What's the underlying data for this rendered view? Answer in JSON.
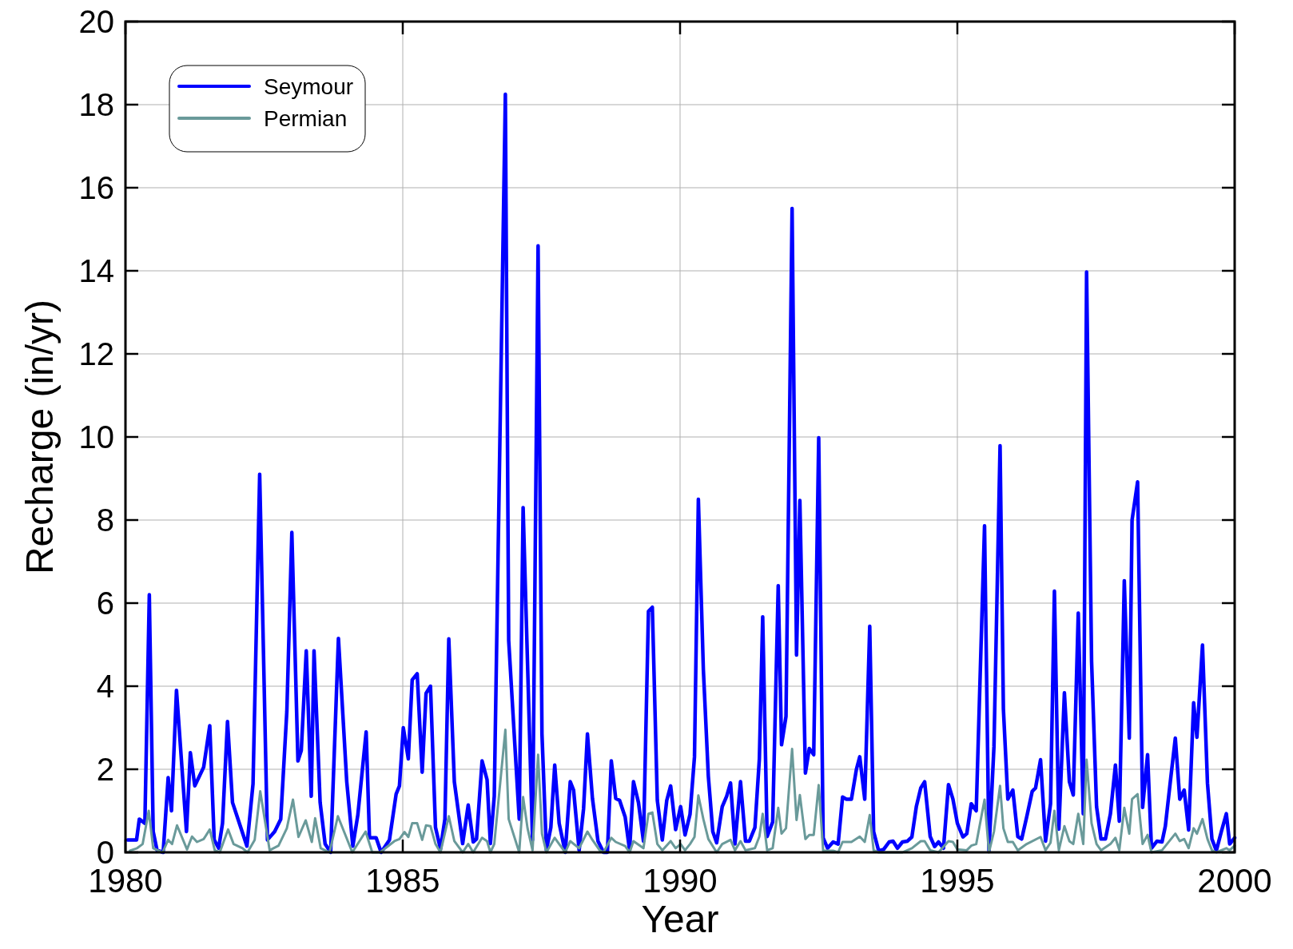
{
  "chart_data": {
    "type": "line",
    "xlabel": "Year",
    "ylabel": "Recharge (in/yr)",
    "xlim": [
      1980,
      2000
    ],
    "xticks": [
      1980,
      1985,
      1990,
      1995,
      2000
    ],
    "ylim": [
      0,
      20
    ],
    "yticks": [
      0,
      2,
      4,
      6,
      8,
      10,
      12,
      14,
      16,
      18,
      20
    ],
    "grid": true,
    "legend": "top left",
    "marker": "none",
    "line_style": "solid",
    "series": [
      {
        "name": "Seymour",
        "color": "#0000ff",
        "x": [
          1980.04,
          1980.2,
          1980.25,
          1980.35,
          1980.43,
          1980.5,
          1980.57,
          1980.68,
          1980.77,
          1980.83,
          1980.92,
          1981.1,
          1981.17,
          1981.25,
          1981.41,
          1981.52,
          1981.6,
          1981.68,
          1981.75,
          1981.84,
          1981.93,
          1982.19,
          1982.3,
          1982.42,
          1982.56,
          1982.69,
          1982.8,
          1982.91,
          1983.0,
          1983.11,
          1983.17,
          1983.26,
          1983.35,
          1983.4,
          1983.51,
          1983.6,
          1983.7,
          1983.84,
          1983.99,
          1984.1,
          1984.19,
          1984.34,
          1984.4,
          1984.52,
          1984.61,
          1984.76,
          1984.88,
          1984.94,
          1985.01,
          1985.1,
          1985.17,
          1985.26,
          1985.35,
          1985.42,
          1985.5,
          1985.59,
          1985.68,
          1985.76,
          1985.83,
          1985.93,
          1986.08,
          1986.18,
          1986.27,
          1986.33,
          1986.43,
          1986.52,
          1986.58,
          1986.65,
          1986.85,
          1986.91,
          1987.1,
          1987.17,
          1987.34,
          1987.44,
          1987.51,
          1987.59,
          1987.67,
          1987.74,
          1987.82,
          1987.93,
          1988.02,
          1988.08,
          1988.18,
          1988.26,
          1988.33,
          1988.42,
          1988.52,
          1988.62,
          1988.69,
          1988.76,
          1988.84,
          1988.91,
          1989.01,
          1989.09,
          1989.16,
          1989.25,
          1989.34,
          1989.43,
          1989.5,
          1989.59,
          1989.68,
          1989.76,
          1989.83,
          1989.92,
          1990.01,
          1990.09,
          1990.18,
          1990.26,
          1990.33,
          1990.42,
          1990.51,
          1990.59,
          1990.66,
          1990.76,
          1990.84,
          1990.91,
          1990.99,
          1991.09,
          1991.18,
          1991.25,
          1991.35,
          1991.43,
          1991.49,
          1991.57,
          1991.67,
          1991.77,
          1991.83,
          1991.91,
          1992.02,
          1992.1,
          1992.16,
          1992.26,
          1992.33,
          1992.41,
          1992.5,
          1992.58,
          1992.66,
          1992.76,
          1992.85,
          1992.93,
          1993.0,
          1993.09,
          1993.18,
          1993.24,
          1993.33,
          1993.42,
          1993.49,
          1993.58,
          1993.67,
          1993.77,
          1993.84,
          1993.92,
          1994.01,
          1994.1,
          1994.18,
          1994.26,
          1994.34,
          1994.41,
          1994.51,
          1994.59,
          1994.66,
          1994.75,
          1994.84,
          1994.92,
          1995.0,
          1995.1,
          1995.17,
          1995.25,
          1995.34,
          1995.49,
          1995.57,
          1995.66,
          1995.77,
          1995.83,
          1995.91,
          1996.0,
          1996.09,
          1996.16,
          1996.25,
          1996.35,
          1996.41,
          1996.5,
          1996.59,
          1996.68,
          1996.75,
          1996.83,
          1996.93,
          1997.02,
          1997.09,
          1997.18,
          1997.27,
          1997.33,
          1997.42,
          1997.51,
          1997.59,
          1997.67,
          1997.76,
          1997.85,
          1997.92,
          1998.01,
          1998.1,
          1998.15,
          1998.25,
          1998.34,
          1998.43,
          1998.5,
          1998.6,
          1998.69,
          1998.75,
          1998.84,
          1998.93,
          1999.01,
          1999.09,
          1999.17,
          1999.26,
          1999.32,
          1999.42,
          1999.51,
          1999.59,
          1999.67,
          1999.76,
          1999.85,
          1999.91,
          2000.0
        ],
        "values": [
          0.3,
          0.3,
          0.8,
          0.7,
          6.2,
          0.5,
          0.05,
          0,
          1.8,
          1.0,
          3.9,
          0.5,
          2.4,
          1.6,
          2.05,
          3.05,
          0.3,
          0.1,
          0.7,
          3.15,
          1.2,
          0.15,
          1.65,
          9.1,
          0.3,
          0.5,
          0.8,
          3.4,
          7.7,
          2.2,
          2.45,
          4.85,
          1.35,
          4.85,
          1.2,
          0.2,
          0,
          5.15,
          1.7,
          0.15,
          0.9,
          2.9,
          0.35,
          0.35,
          0,
          0.3,
          1.4,
          1.6,
          3.0,
          2.25,
          4.15,
          4.3,
          1.93,
          3.83,
          4.0,
          0.6,
          0.08,
          0.8,
          5.14,
          1.7,
          0.21,
          1.14,
          0.25,
          0.32,
          2.2,
          1.75,
          0.21,
          1.35,
          18.25,
          5.1,
          0.8,
          8.3,
          0.3,
          14.6,
          2.85,
          0.05,
          0.6,
          2.1,
          0.7,
          0,
          1.7,
          1.5,
          0.05,
          1.05,
          2.85,
          1.3,
          0.27,
          0,
          0,
          2.2,
          1.3,
          1.25,
          0.85,
          0.05,
          1.7,
          1.2,
          0.27,
          5.8,
          5.9,
          1.25,
          0.3,
          1.25,
          1.6,
          0.55,
          1.1,
          0.42,
          0.92,
          2.3,
          8.5,
          4.4,
          1.83,
          0.5,
          0.23,
          1.1,
          1.35,
          1.67,
          0.2,
          1.7,
          0.27,
          0.27,
          0.6,
          2.25,
          5.67,
          0.38,
          0.73,
          6.42,
          2.59,
          3.27,
          15.5,
          4.75,
          8.47,
          1.91,
          2.5,
          2.35,
          9.98,
          0.35,
          0.1,
          0.25,
          0.2,
          1.33,
          1.28,
          1.28,
          2.0,
          2.3,
          1.28,
          5.44,
          0.5,
          0.04,
          0.07,
          0.25,
          0.27,
          0.1,
          0.25,
          0.27,
          0.37,
          1.1,
          1.55,
          1.7,
          0.38,
          0.14,
          0.25,
          0.1,
          1.63,
          1.28,
          0.7,
          0.37,
          0.45,
          1.17,
          1.0,
          7.86,
          0.04,
          2.55,
          9.79,
          3.45,
          1.28,
          1.5,
          0.38,
          0.32,
          0.85,
          1.47,
          1.55,
          2.23,
          0.27,
          1.17,
          6.29,
          0.56,
          3.84,
          1.7,
          1.38,
          5.76,
          0.93,
          13.97,
          4.6,
          1.1,
          0.32,
          0.32,
          0.93,
          2.1,
          0.75,
          6.54,
          2.75,
          8.0,
          8.92,
          1.08,
          2.35,
          0.1,
          0.27,
          0.25,
          0.63,
          1.7,
          2.75,
          1.28,
          1.5,
          0.54,
          3.6,
          2.77,
          4.99,
          1.66,
          0.32,
          0.04,
          0.5,
          0.93,
          0.2,
          0.35
        ]
      },
      {
        "name": "Permian",
        "color": "#6a9a9a",
        "x": [
          1980.08,
          1980.21,
          1980.31,
          1980.42,
          1980.5,
          1980.67,
          1980.77,
          1980.84,
          1980.93,
          1981.11,
          1981.2,
          1981.29,
          1981.41,
          1981.52,
          1981.61,
          1981.7,
          1981.85,
          1981.95,
          1982.11,
          1982.2,
          1982.33,
          1982.43,
          1982.6,
          1982.76,
          1982.91,
          1983.02,
          1983.12,
          1983.25,
          1983.36,
          1983.42,
          1983.52,
          1983.68,
          1983.83,
          1984.09,
          1984.33,
          1984.45,
          1984.59,
          1984.85,
          1984.94,
          1985.03,
          1985.1,
          1985.17,
          1985.26,
          1985.35,
          1985.42,
          1985.5,
          1985.59,
          1985.68,
          1985.83,
          1985.93,
          1986.08,
          1986.18,
          1986.27,
          1986.43,
          1986.52,
          1986.58,
          1986.65,
          1986.85,
          1986.91,
          1987.1,
          1987.17,
          1987.25,
          1987.34,
          1987.44,
          1987.51,
          1987.59,
          1987.74,
          1987.82,
          1987.93,
          1988.02,
          1988.18,
          1988.33,
          1988.42,
          1988.55,
          1988.62,
          1988.76,
          1988.84,
          1989.01,
          1989.09,
          1989.16,
          1989.34,
          1989.43,
          1989.5,
          1989.59,
          1989.68,
          1989.83,
          1989.92,
          1990.01,
          1990.09,
          1990.18,
          1990.26,
          1990.33,
          1990.42,
          1990.51,
          1990.66,
          1990.76,
          1990.91,
          1990.99,
          1991.09,
          1991.18,
          1991.35,
          1991.43,
          1991.49,
          1991.57,
          1991.67,
          1991.77,
          1991.83,
          1991.91,
          1992.02,
          1992.1,
          1992.16,
          1992.26,
          1992.33,
          1992.41,
          1992.5,
          1992.58,
          1992.76,
          1992.85,
          1992.93,
          1993.09,
          1993.24,
          1993.33,
          1993.42,
          1993.49,
          1993.58,
          1994.01,
          1994.18,
          1994.34,
          1994.41,
          1994.51,
          1994.66,
          1994.84,
          1994.92,
          1995.0,
          1995.17,
          1995.25,
          1995.34,
          1995.49,
          1995.57,
          1995.66,
          1995.77,
          1995.83,
          1995.91,
          1996.0,
          1996.09,
          1996.25,
          1996.5,
          1996.59,
          1996.68,
          1996.75,
          1996.83,
          1996.93,
          1997.02,
          1997.09,
          1997.18,
          1997.27,
          1997.33,
          1997.42,
          1997.51,
          1997.59,
          1997.76,
          1997.85,
          1997.92,
          1998.01,
          1998.1,
          1998.15,
          1998.25,
          1998.34,
          1998.43,
          1998.5,
          1998.69,
          1998.93,
          1999.01,
          1999.09,
          1999.17,
          1999.26,
          1999.32,
          1999.42,
          1999.51,
          1999.59,
          1999.67,
          1999.85,
          1999.91,
          2000.0
        ],
        "values": [
          0.04,
          0.1,
          0.2,
          1.0,
          0.1,
          0,
          0.3,
          0.2,
          0.65,
          0.07,
          0.38,
          0.25,
          0.32,
          0.55,
          0.05,
          0,
          0.55,
          0.2,
          0.1,
          0,
          0.3,
          1.47,
          0.05,
          0.16,
          0.58,
          1.27,
          0.37,
          0.77,
          0.25,
          0.82,
          0.1,
          0,
          0.87,
          0,
          0.5,
          0,
          0,
          0.27,
          0.32,
          0.49,
          0.37,
          0.7,
          0.7,
          0.3,
          0.65,
          0.63,
          0.2,
          0,
          0.87,
          0.27,
          0,
          0.2,
          0,
          0.35,
          0.27,
          0,
          0.2,
          2.95,
          0.8,
          0,
          1.33,
          0.58,
          0.05,
          2.35,
          0.45,
          0,
          0.35,
          0.2,
          0,
          0.27,
          0.1,
          0.5,
          0.3,
          0.05,
          0,
          0.35,
          0.25,
          0.15,
          0,
          0.27,
          0.1,
          0.93,
          0.96,
          0.2,
          0.05,
          0.27,
          0.1,
          0.2,
          0.05,
          0.2,
          0.37,
          1.37,
          0.8,
          0.32,
          0,
          0.2,
          0.3,
          0.05,
          0.27,
          0.05,
          0.1,
          0.38,
          0.93,
          0.05,
          0.1,
          1.07,
          0.45,
          0.58,
          2.49,
          0.78,
          1.38,
          0.32,
          0.42,
          0.42,
          1.62,
          0.04,
          0.04,
          0,
          0.25,
          0.25,
          0.38,
          0.25,
          0.9,
          0.05,
          0,
          0,
          0.1,
          0.27,
          0.27,
          0.05,
          0,
          0.27,
          0.25,
          0.07,
          0.05,
          0.16,
          0.2,
          1.27,
          0,
          0.5,
          1.6,
          0.58,
          0.25,
          0.25,
          0.05,
          0.2,
          0.37,
          0.05,
          0.23,
          1.0,
          0.05,
          0.63,
          0.27,
          0.2,
          0.93,
          0.2,
          2.23,
          0.7,
          0.2,
          0.05,
          0.2,
          0.35,
          0.05,
          1.07,
          0.45,
          1.28,
          1.4,
          0.2,
          0.42,
          0,
          0.05,
          0.45,
          0.27,
          0.32,
          0.1,
          0.58,
          0.45,
          0.8,
          0.32,
          0.05,
          0,
          0.1,
          0.05,
          0.16
        ]
      }
    ]
  }
}
